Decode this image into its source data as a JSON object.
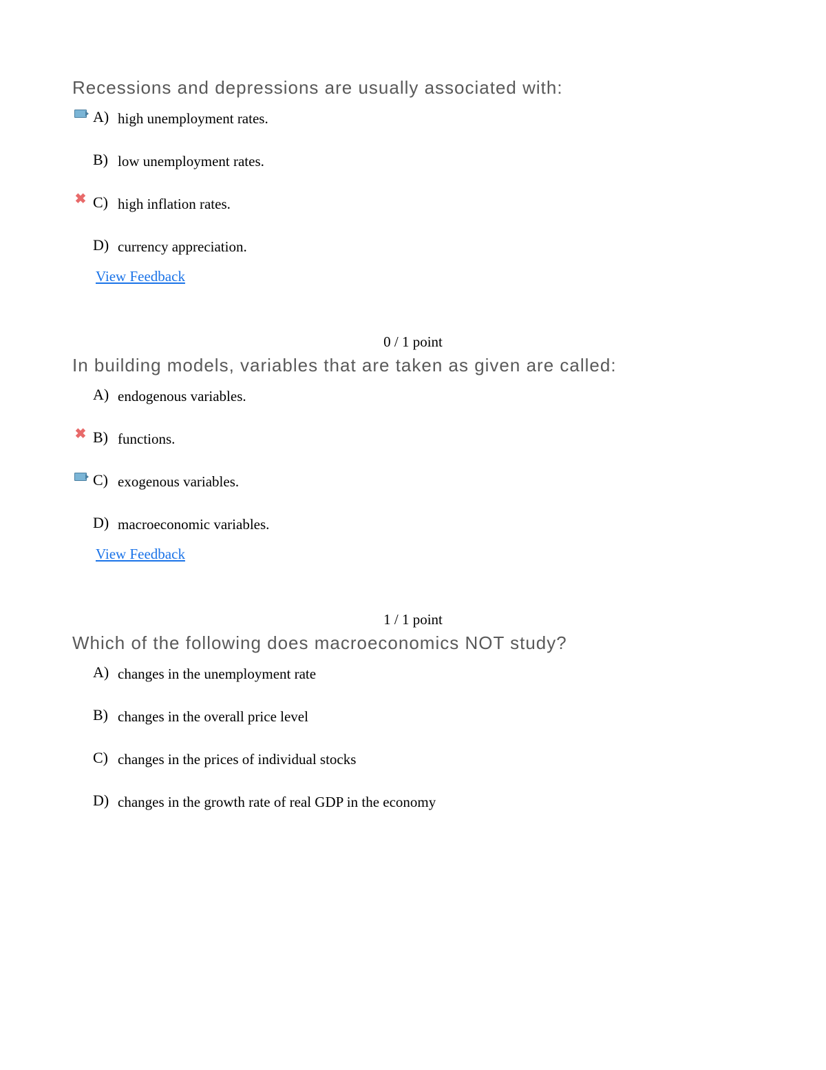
{
  "feedback_label": "View Feedback",
  "questions": [
    {
      "title": "Recessions and depressions are usually associated with:",
      "points": null,
      "options": [
        {
          "letter": "A)",
          "text": "high unemployment rates.",
          "mark": "correct"
        },
        {
          "letter": "B)",
          "text": "low unemployment rates.",
          "mark": null
        },
        {
          "letter": "C)",
          "text": "high inflation rates.",
          "mark": "wrong"
        },
        {
          "letter": "D)",
          "text": "currency appreciation.",
          "mark": null
        }
      ],
      "show_feedback": true
    },
    {
      "title": "In building models, variables that are taken as given are called:",
      "points": "0 / 1 point",
      "options": [
        {
          "letter": "A)",
          "text": "endogenous variables.",
          "mark": null
        },
        {
          "letter": "B)",
          "text": "functions.",
          "mark": "wrong"
        },
        {
          "letter": "C)",
          "text": "exogenous variables.",
          "mark": "correct"
        },
        {
          "letter": "D)",
          "text": "macroeconomic variables.",
          "mark": null
        }
      ],
      "show_feedback": true
    },
    {
      "title": "Which of the following does macroeconomics NOT study?",
      "points": "1 / 1 point",
      "options": [
        {
          "letter": "A)",
          "text": "changes in the unemployment rate",
          "mark": null
        },
        {
          "letter": "B)",
          "text": "changes in the overall price level",
          "mark": null
        },
        {
          "letter": "C)",
          "text": "changes in the prices of individual stocks",
          "mark": null
        },
        {
          "letter": "D)",
          "text": "changes in the growth rate of real GDP in the economy",
          "mark": null
        }
      ],
      "show_feedback": false
    }
  ]
}
